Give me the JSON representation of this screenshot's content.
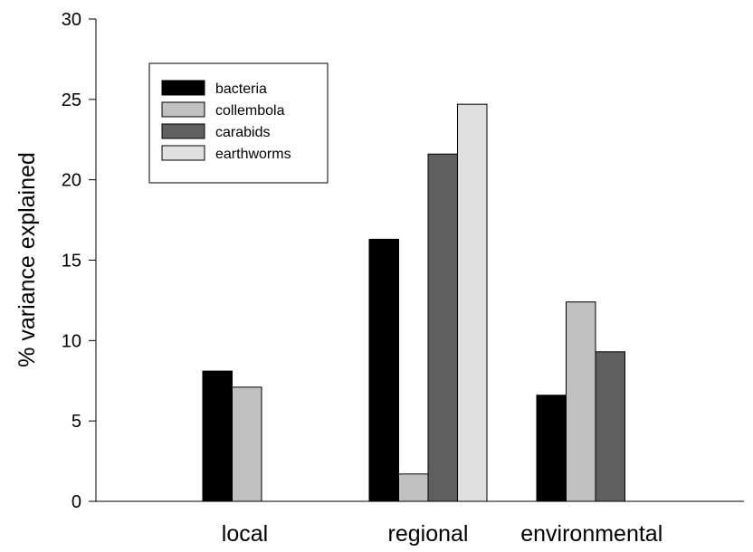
{
  "chart_data": {
    "type": "bar",
    "title": "",
    "xlabel": "",
    "ylabel": "% variance explained",
    "ylim": [
      0,
      30
    ],
    "yticks": [
      0,
      5,
      10,
      15,
      20,
      25,
      30
    ],
    "categories": [
      "local",
      "regional",
      "environmental"
    ],
    "series": [
      {
        "name": "bacteria",
        "color": "#000000",
        "values": [
          8.1,
          16.3,
          6.6
        ]
      },
      {
        "name": "collembola",
        "color": "#c0c0c0",
        "values": [
          7.1,
          1.7,
          12.4
        ]
      },
      {
        "name": "carabids",
        "color": "#606060",
        "values": [
          null,
          21.6,
          9.3
        ]
      },
      {
        "name": "earthworms",
        "color": "#e0e0e0",
        "values": [
          null,
          24.7,
          null
        ]
      }
    ],
    "grid": false,
    "legend_position": "top-left"
  }
}
